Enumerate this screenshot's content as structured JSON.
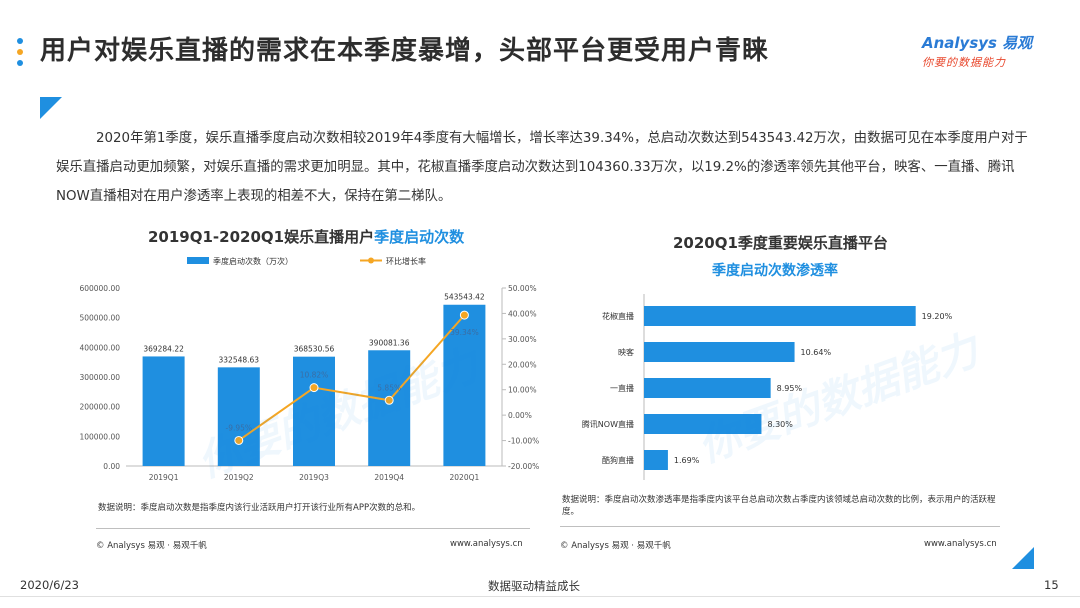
{
  "header": {
    "title": "用户对娱乐直播的需求在本季度暴增，头部平台更受用户青睐",
    "brand_name": "Analysys 易观",
    "brand_slogan": "你要的数据能力",
    "dot_colors": [
      "#1f8fe0",
      "#f5a623",
      "#1f8fe0"
    ]
  },
  "intro": "2020年第1季度，娱乐直播季度启动次数相较2019年4季度有大幅增长，增长率达39.34%，总启动次数达到543543.42万次，由数据可见在本季度用户对于娱乐直播启动更加频繁，对娱乐直播的需求更加明显。其中，花椒直播季度启动次数达到104360.33万次，以19.2%的渗透率领先其他平台，映客、一直播、腾讯NOW直播相对在用户渗透率上表现的相差不大，保持在第二梯队。",
  "left_panel": {
    "title_prefix": "2019Q1-2020Q1娱乐直播用户",
    "title_highlight": "季度启动次数",
    "note": "数据说明：季度启动次数是指季度内该行业活跃用户打开该行业所有APP次数的总和。",
    "copyright": "© Analysys 易观 · 易观千帆",
    "url": "www.analysys.cn"
  },
  "right_panel": {
    "title": "2020Q1季度重要娱乐直播平台",
    "subtitle": "季度启动次数渗透率",
    "note": "数据说明：季度启动次数渗透率是指季度内该平台总启动次数占季度内该领域总启动次数的比例，表示用户的活跃程度。",
    "copyright": "© Analysys 易观 · 易观千帆",
    "url": "www.analysys.cn"
  },
  "footer": {
    "date": "2020/6/23",
    "center": "数据驱动精益成长",
    "page": "15"
  },
  "watermark": "你要的数据能力",
  "colors": {
    "accent": "#1f8fe0",
    "orange": "#f5a623",
    "bar": "#1f8fe0"
  },
  "chart_data": [
    {
      "type": "bar",
      "categories": [
        "2019Q1",
        "2019Q2",
        "2019Q3",
        "2019Q4",
        "2020Q1"
      ],
      "series": [
        {
          "name": "季度启动次数（万次）",
          "type": "bar",
          "values": [
            369284.22,
            332548.63,
            368530.56,
            390081.36,
            543543.42
          ],
          "labels": [
            "369284.22",
            "332548.63",
            "368530.56",
            "390081.36",
            "543543.42"
          ]
        },
        {
          "name": "环比增长率",
          "type": "line",
          "axis": "right",
          "values": [
            null,
            -9.95,
            10.82,
            5.85,
            39.34
          ],
          "labels": [
            "",
            "-9.95%",
            "10.82%",
            "5.85%",
            "39.34%"
          ]
        }
      ],
      "ylim": [
        0,
        600000
      ],
      "yticks": [
        "0.00",
        "100000.00",
        "200000.00",
        "300000.00",
        "400000.00",
        "500000.00",
        "600000.00"
      ],
      "y2lim": [
        -20,
        50
      ],
      "y2ticks": [
        "-20.00%",
        "-10.00%",
        "0.00%",
        "10.00%",
        "20.00%",
        "30.00%",
        "40.00%",
        "50.00%"
      ],
      "legend": "top"
    },
    {
      "type": "bar",
      "orientation": "horizontal",
      "categories": [
        "花椒直播",
        "映客",
        "一直播",
        "腾讯NOW直播",
        "酷狗直播"
      ],
      "values": [
        19.2,
        10.64,
        8.95,
        8.3,
        1.69
      ],
      "labels": [
        "19.20%",
        "10.64%",
        "8.95%",
        "8.30%",
        "1.69%"
      ]
    }
  ]
}
